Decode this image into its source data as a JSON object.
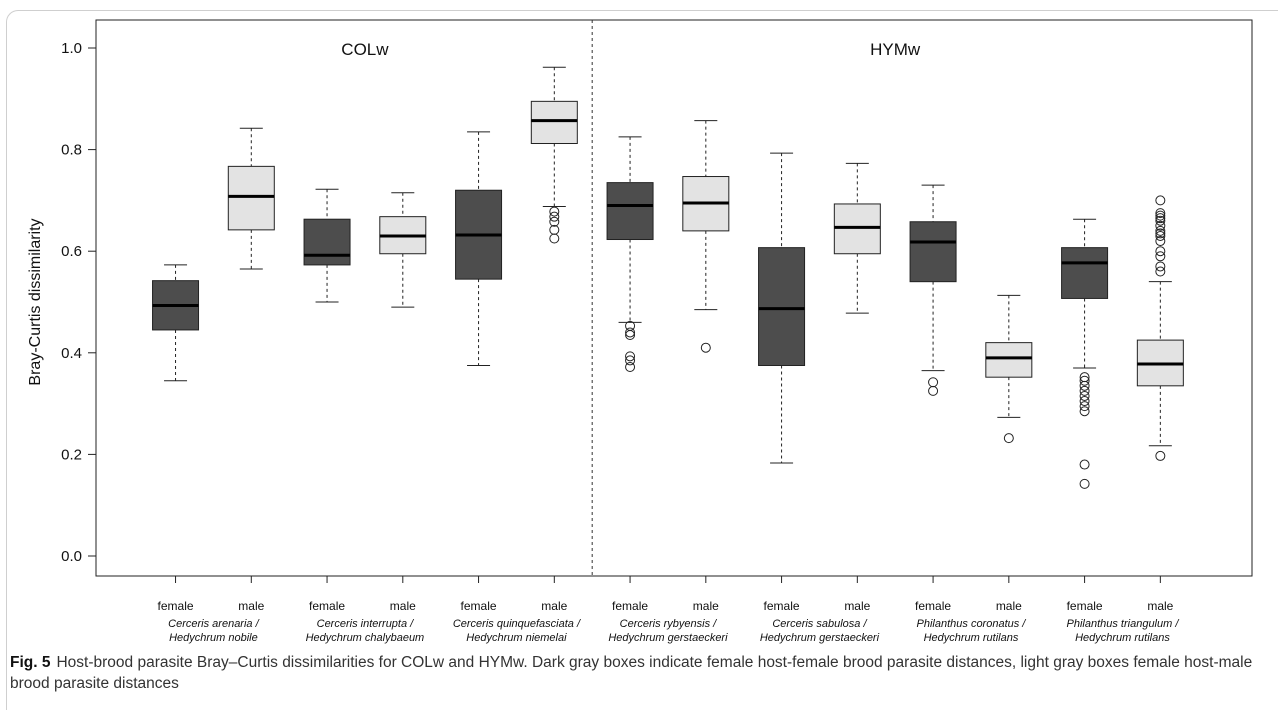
{
  "chart_data": {
    "type": "boxplot",
    "ylabel": "Bray-Curtis dissimilarity",
    "ylim": [
      0,
      1
    ],
    "yticks": [
      "0.0",
      "0.2",
      "0.4",
      "0.6",
      "0.8",
      "1.0"
    ],
    "panels": [
      {
        "label": "COLw",
        "pair_count": 3
      },
      {
        "label": "HYMw",
        "pair_count": 4
      }
    ],
    "categories": [
      {
        "pair": [
          "Cerceris arenaria /",
          "Hedychrum nobile"
        ],
        "labels": [
          "female",
          "male"
        ]
      },
      {
        "pair": [
          "Cerceris interrupta /",
          "Hedychrum chalybaeum"
        ],
        "labels": [
          "female",
          "male"
        ]
      },
      {
        "pair": [
          "Cerceris quinquefasciata /",
          "Hedychrum niemelai"
        ],
        "labels": [
          "female",
          "male"
        ]
      },
      {
        "pair": [
          "Cerceris rybyensis /",
          "Hedychrum gerstaeckeri"
        ],
        "labels": [
          "female",
          "male"
        ]
      },
      {
        "pair": [
          "Cerceris sabulosa /",
          "Hedychrum gerstaeckeri"
        ],
        "labels": [
          "female",
          "male"
        ]
      },
      {
        "pair": [
          "Philanthus coronatus /",
          "Hedychrum rutilans"
        ],
        "labels": [
          "female",
          "male"
        ]
      },
      {
        "pair": [
          "Philanthus triangulum /",
          "Hedychrum rutilans"
        ],
        "labels": [
          "female",
          "male"
        ]
      }
    ],
    "series": [
      {
        "name": "female",
        "color": "#4d4d4d",
        "boxes": [
          {
            "min": 0.345,
            "q1": 0.445,
            "median": 0.493,
            "q3": 0.542,
            "max": 0.573,
            "outliers": []
          },
          {
            "min": 0.5,
            "q1": 0.573,
            "median": 0.592,
            "q3": 0.663,
            "max": 0.722,
            "outliers": []
          },
          {
            "min": 0.375,
            "q1": 0.545,
            "median": 0.632,
            "q3": 0.72,
            "max": 0.835,
            "outliers": []
          },
          {
            "min": 0.46,
            "q1": 0.623,
            "median": 0.69,
            "q3": 0.735,
            "max": 0.825,
            "outliers": [
              0.453,
              0.44,
              0.435,
              0.393,
              0.385,
              0.372
            ]
          },
          {
            "min": 0.183,
            "q1": 0.375,
            "median": 0.487,
            "q3": 0.607,
            "max": 0.793,
            "outliers": []
          },
          {
            "min": 0.365,
            "q1": 0.54,
            "median": 0.618,
            "q3": 0.658,
            "max": 0.73,
            "outliers": [
              0.342,
              0.325
            ]
          },
          {
            "min": 0.37,
            "q1": 0.507,
            "median": 0.577,
            "q3": 0.607,
            "max": 0.663,
            "outliers": [
              0.352,
              0.345,
              0.335,
              0.325,
              0.315,
              0.305,
              0.295,
              0.285,
              0.18,
              0.142
            ]
          }
        ]
      },
      {
        "name": "male",
        "color": "#e3e3e3",
        "boxes": [
          {
            "min": 0.565,
            "q1": 0.642,
            "median": 0.708,
            "q3": 0.767,
            "max": 0.842,
            "outliers": []
          },
          {
            "min": 0.49,
            "q1": 0.595,
            "median": 0.63,
            "q3": 0.668,
            "max": 0.715,
            "outliers": []
          },
          {
            "min": 0.688,
            "q1": 0.812,
            "median": 0.857,
            "q3": 0.895,
            "max": 0.962,
            "outliers": [
              0.678,
              0.668,
              0.658,
              0.642,
              0.625
            ]
          },
          {
            "min": 0.485,
            "q1": 0.64,
            "median": 0.695,
            "q3": 0.747,
            "max": 0.857,
            "outliers": [
              0.41
            ]
          },
          {
            "min": 0.478,
            "q1": 0.595,
            "median": 0.647,
            "q3": 0.693,
            "max": 0.773,
            "outliers": []
          },
          {
            "min": 0.273,
            "q1": 0.352,
            "median": 0.39,
            "q3": 0.42,
            "max": 0.513,
            "outliers": [
              0.232
            ]
          },
          {
            "min": 0.217,
            "q1": 0.335,
            "median": 0.378,
            "q3": 0.425,
            "max": 0.54,
            "outliers": [
              0.7,
              0.675,
              0.67,
              0.665,
              0.66,
              0.65,
              0.64,
              0.635,
              0.63,
              0.62,
              0.6,
              0.59,
              0.57,
              0.56,
              0.197
            ]
          }
        ]
      }
    ]
  },
  "caption": {
    "figure": "Fig. 5",
    "text": "Host-brood parasite Bray–Curtis dissimilarities for COLw and HYMw. Dark gray boxes indicate female host-female brood parasite distances, light gray boxes female host-male brood parasite distances"
  }
}
